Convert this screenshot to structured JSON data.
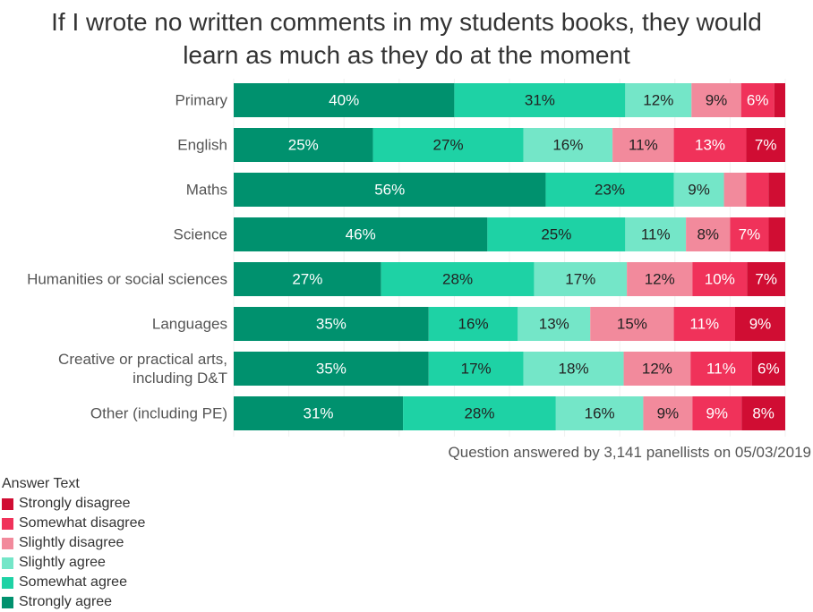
{
  "title_lines": [
    "If I wrote no written comments in my students books, they would",
    "learn as much as they do at the moment"
  ],
  "caption": "Question answered by 3,141 panellists on 05/03/2019",
  "legend_title": "Answer Text",
  "colors": {
    "Strongly agree": "#00916e",
    "Somewhat agree": "#1ed2a5",
    "Slightly agree": "#74e6c8",
    "Slightly disagree": "#f28a9c",
    "Somewhat disagree": "#f0325a",
    "Strongly disagree": "#d00d33"
  },
  "chart_data": {
    "type": "bar",
    "orientation": "horizontal",
    "stacked": true,
    "unit": "%",
    "categories": [
      "Primary",
      "English",
      "Maths",
      "Science",
      "Humanities or social sciences",
      "Languages",
      "Creative or practical arts, including D&T",
      "Other (including PE)"
    ],
    "category_display": [
      [
        "Primary"
      ],
      [
        "English"
      ],
      [
        "Maths"
      ],
      [
        "Science"
      ],
      [
        "Humanities or social sciences"
      ],
      [
        "Languages"
      ],
      [
        "Creative or practical arts,",
        "including D&T"
      ],
      [
        "Other (including PE)"
      ]
    ],
    "series": [
      {
        "name": "Strongly agree",
        "values": [
          40,
          25,
          56,
          46,
          27,
          35,
          35,
          31
        ],
        "labels": [
          "40%",
          "25%",
          "56%",
          "46%",
          "27%",
          "35%",
          "35%",
          "31%"
        ]
      },
      {
        "name": "Somewhat agree",
        "values": [
          31,
          27,
          23,
          25,
          28,
          16,
          17,
          28
        ],
        "labels": [
          "31%",
          "27%",
          "23%",
          "25%",
          "28%",
          "16%",
          "17%",
          "28%"
        ]
      },
      {
        "name": "Slightly agree",
        "values": [
          12,
          16,
          9,
          11,
          17,
          13,
          18,
          16
        ],
        "labels": [
          "12%",
          "16%",
          "9%",
          "11%",
          "17%",
          "13%",
          "18%",
          "16%"
        ]
      },
      {
        "name": "Slightly disagree",
        "values": [
          9,
          11,
          4,
          8,
          12,
          15,
          12,
          9
        ],
        "labels": [
          "9%",
          "11%",
          "",
          "8%",
          "12%",
          "15%",
          "12%",
          "9%"
        ]
      },
      {
        "name": "Somewhat disagree",
        "values": [
          6,
          13,
          4,
          7,
          10,
          11,
          11,
          9
        ],
        "labels": [
          "6%",
          "13%",
          "",
          "7%",
          "10%",
          "11%",
          "11%",
          "9%"
        ]
      },
      {
        "name": "Strongly disagree",
        "values": [
          2,
          7,
          3,
          3,
          7,
          9,
          6,
          8
        ],
        "labels": [
          "",
          "7%",
          "",
          "",
          "7%",
          "9%",
          "6%",
          "8%"
        ]
      }
    ],
    "legend_order": [
      "Strongly disagree",
      "Somewhat disagree",
      "Slightly disagree",
      "Slightly agree",
      "Somewhat agree",
      "Strongly agree"
    ],
    "xlim": [
      0,
      100
    ],
    "grid": true,
    "legend_position": "bottom-left"
  }
}
